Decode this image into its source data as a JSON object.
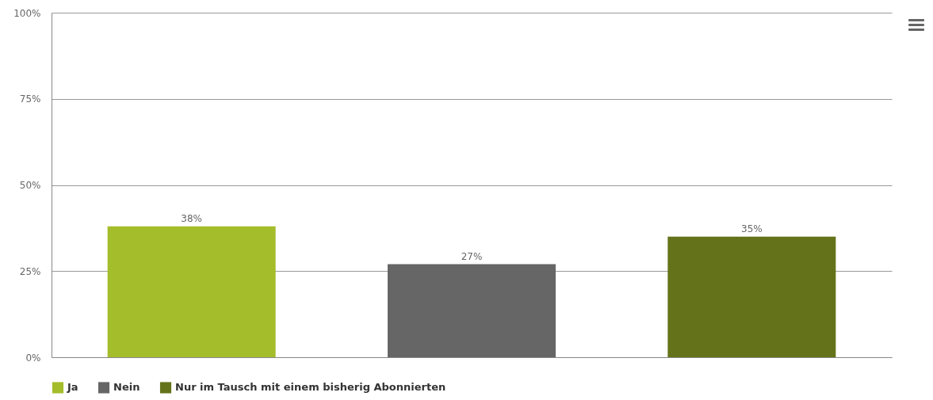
{
  "chart_data": {
    "type": "bar",
    "categories": [
      null,
      null,
      null
    ],
    "series": [
      {
        "name": "Ja",
        "color": "#a4bd2a",
        "values": [
          38,
          null,
          null
        ],
        "value_labels": [
          "38%",
          null,
          null
        ]
      },
      {
        "name": "Nein",
        "color": "#666666",
        "values": [
          null,
          27,
          null
        ],
        "value_labels": [
          null,
          "27%",
          null
        ]
      },
      {
        "name": "Nur im Tausch mit einem bisherig Abonnierten",
        "color": "#647319",
        "values": [
          null,
          null,
          35
        ],
        "value_labels": [
          null,
          null,
          "35%"
        ]
      }
    ],
    "ylim": [
      0,
      100
    ],
    "yticks": [
      {
        "value": 0,
        "label": "0%"
      },
      {
        "value": 25,
        "label": "25%"
      },
      {
        "value": 50,
        "label": "50%"
      },
      {
        "value": 75,
        "label": "75%"
      },
      {
        "value": 100,
        "label": "100%"
      }
    ],
    "grid": "y",
    "legend": "bottom",
    "tick_labels": "y"
  }
}
